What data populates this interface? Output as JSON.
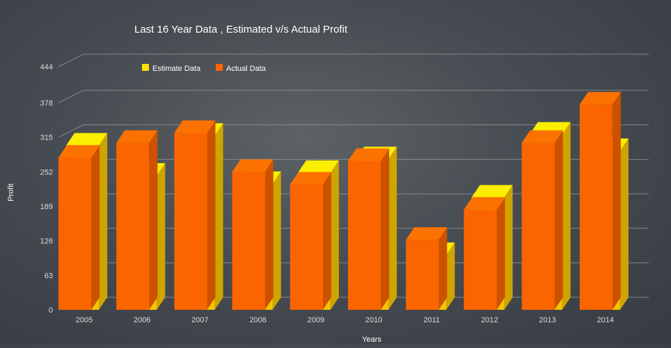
{
  "chart_data": {
    "type": "bar",
    "title": "Last 16 Year Data , Estimated v/s Actual Profit",
    "xlabel": "Years",
    "ylabel": "Profit",
    "categories": [
      "2005",
      "2006",
      "2007",
      "2008",
      "2009",
      "2010",
      "2011",
      "2012",
      "2013",
      "2014"
    ],
    "series": [
      {
        "name": "Estimate Data",
        "values": [
          300,
          245,
          318,
          230,
          250,
          275,
          100,
          205,
          320,
          290
        ]
      },
      {
        "name": "Actual Data",
        "values": [
          278,
          305,
          323,
          252,
          229,
          272,
          128,
          183,
          305,
          375
        ]
      }
    ],
    "yticks": [
      "0",
      "63",
      "126",
      "189",
      "252",
      "315",
      "378",
      "444"
    ],
    "ylim": [
      0,
      444
    ],
    "grid": true,
    "legend_position": "top-left",
    "colors": {
      "estimate_front": "#f5c400",
      "estimate_top": "#fbee00",
      "estimate_side": "#cfa400",
      "actual_front": "#fb6500",
      "actual_top": "#fb7200",
      "actual_side": "#cc5200",
      "text": "#ffffff",
      "tick_text": "#dcdcdc",
      "grid": "#9a9da0"
    }
  }
}
